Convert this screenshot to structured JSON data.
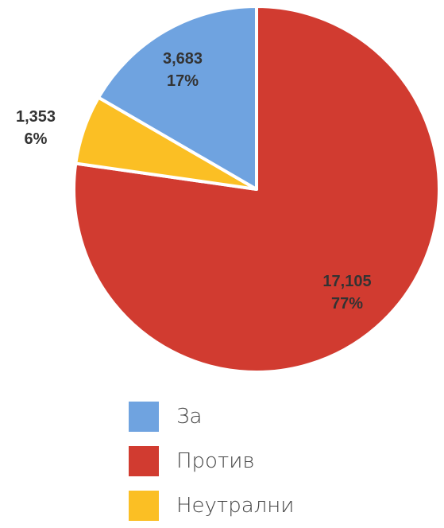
{
  "chart_data": {
    "type": "pie",
    "start_angle_deg": 0,
    "direction": "clockwise",
    "slices": [
      {
        "name": "Против",
        "value": 17105,
        "percent": "77%",
        "value_label": "17,105",
        "color": "#d13b30"
      },
      {
        "name": "Неутрални",
        "value": 1353,
        "percent": "6%",
        "value_label": "1,353",
        "color": "#fbbf24"
      },
      {
        "name": "За",
        "value": 3683,
        "percent": "17%",
        "value_label": "3,683",
        "color": "#6fa3e0"
      }
    ],
    "legend": {
      "placement": "bottom",
      "items": [
        {
          "label": "За",
          "color": "#6fa3e0"
        },
        {
          "label": "Против",
          "color": "#d13b30"
        },
        {
          "label": "Неутрални",
          "color": "#fbbf24"
        }
      ]
    }
  }
}
